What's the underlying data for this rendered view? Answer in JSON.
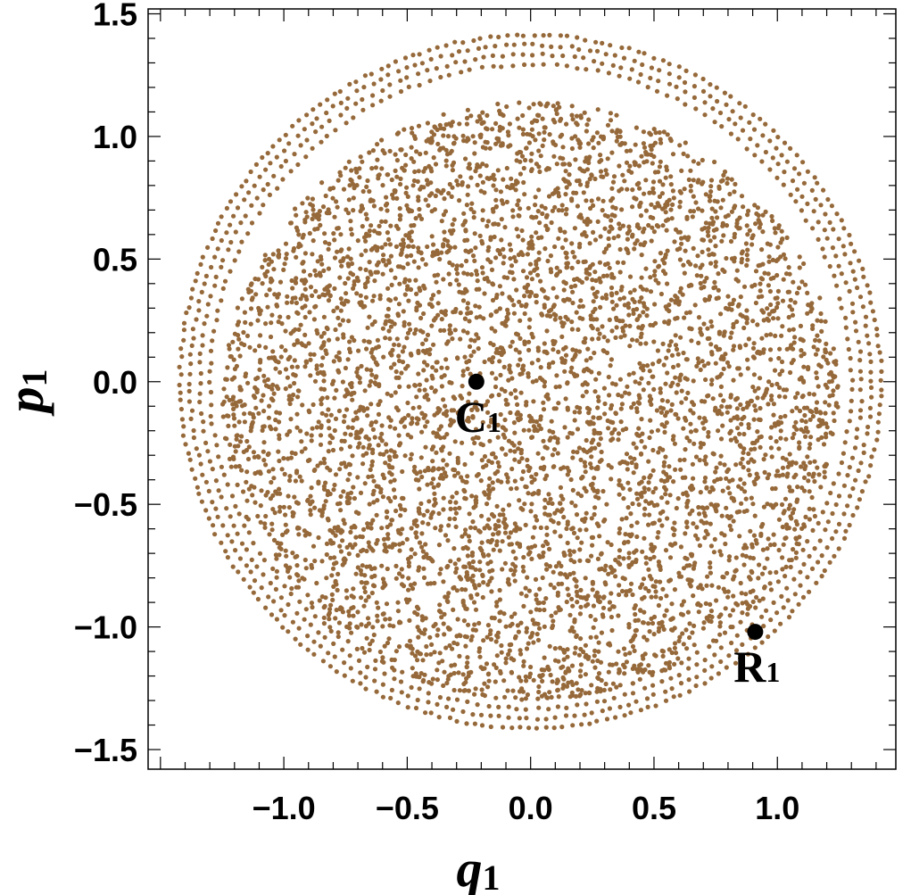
{
  "chart_data": {
    "type": "scatter",
    "xlabel": "q",
    "xlabel_sub": "1",
    "ylabel": "p",
    "ylabel_sub": "1",
    "xlim": [
      -1.55,
      1.48
    ],
    "ylim": [
      -1.58,
      1.52
    ],
    "x_ticks": [
      -1.0,
      -0.5,
      0.0,
      0.5,
      1.0
    ],
    "x_tick_labels": [
      "−1.0",
      "−0.5",
      "0.0",
      "0.5",
      "1.0"
    ],
    "y_ticks": [
      1.5,
      1.0,
      0.5,
      0.0,
      -0.5,
      -1.0,
      -1.5
    ],
    "y_tick_labels": [
      "1.5",
      "1.0",
      "0.5",
      "0.0",
      "−0.5",
      "−1.0",
      "−1.5"
    ],
    "grid": false,
    "colors": {
      "points": "#96693a",
      "markers": "#000000",
      "frame": "#000000"
    },
    "scatter_series": {
      "description_level": "Poincare section: chaotic sea inside r~1.25 surrounded by invariant-torus rings",
      "chaotic_region": {
        "center": [
          0.0,
          -0.08
        ],
        "radius_x": 1.25,
        "radius_y": 1.22,
        "n_points": 5200
      },
      "rings": [
        {
          "radius": 1.3,
          "n_points": 190
        },
        {
          "radius": 1.34,
          "n_points": 210
        },
        {
          "radius": 1.38,
          "n_points": 230
        },
        {
          "radius": 1.42,
          "n_points": 250
        }
      ]
    },
    "marked_points": [
      {
        "label": "C",
        "sub": "1",
        "x": -0.22,
        "y": 0.0
      },
      {
        "label": "R",
        "sub": "1",
        "x": 0.91,
        "y": -1.02
      }
    ]
  }
}
